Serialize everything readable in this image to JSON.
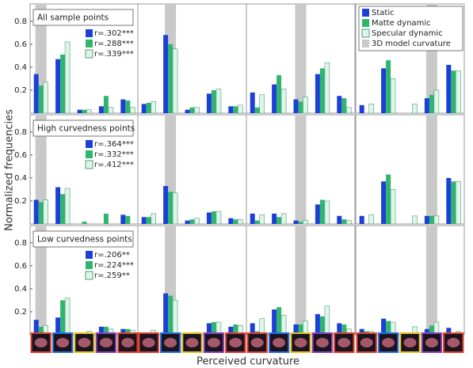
{
  "chart_data": {
    "type": "bar",
    "y_axis_label": "Normalized frequencies",
    "x_axis_label": "Perceived curvature",
    "ylim": [
      0,
      0.95
    ],
    "yticks": [
      0.2,
      0.4,
      0.6,
      0.8
    ],
    "categories": [
      null,
      null,
      null,
      null,
      null
    ],
    "category_border_colors": [
      "#e0402a",
      "#2a6de0",
      "#e8c21a",
      "#8a3fc0",
      "#e0402a"
    ],
    "series": [
      {
        "name": "Static",
        "color": "#1c3fd8"
      },
      {
        "name": "Matte dynamic",
        "color": "#2fb56e"
      },
      {
        "name": "Specular dynamic",
        "color": "#dcf6ea"
      }
    ],
    "model_curvature": {
      "name": "3D model curvature",
      "color": "#c9c9c9"
    },
    "rows": [
      {
        "title": "All sample points",
        "correlations": [
          "r=.302***",
          "r=.288***",
          "r=.339***"
        ],
        "panels": [
          {
            "model_curvature_category": 0,
            "values": [
              [
                0.34,
                0.47,
                0.03,
                0.06,
                0.12
              ],
              [
                0.24,
                0.51,
                0.03,
                0.15,
                0.11
              ],
              [
                0.27,
                0.62,
                0.03,
                0.05,
                0.05
              ]
            ]
          },
          {
            "model_curvature_category": 1,
            "values": [
              [
                0.08,
                0.68,
                0.03,
                0.17,
                0.06
              ],
              [
                0.09,
                0.6,
                0.05,
                0.2,
                0.06
              ],
              [
                0.1,
                0.56,
                0.05,
                0.21,
                0.07
              ]
            ]
          },
          {
            "model_curvature_category": 2,
            "values": [
              [
                0.18,
                0.25,
                0.12,
                0.34,
                0.15
              ],
              [
                0.05,
                0.33,
                0.1,
                0.39,
                0.13
              ],
              [
                0.16,
                0.21,
                0.14,
                0.44,
                0.05
              ]
            ]
          },
          {
            "model_curvature_category": 3,
            "values": [
              [
                0.07,
                0.39,
                0,
                0.13,
                0.42
              ],
              [
                0,
                0.46,
                0,
                0.16,
                0.37
              ],
              [
                0.08,
                0.3,
                0.08,
                0.2,
                0.37
              ]
            ]
          }
        ]
      },
      {
        "title": "High curvedness points",
        "correlations": [
          "r=.364***",
          "r=.332***",
          "r=.412***"
        ],
        "panels": [
          {
            "model_curvature_category": 0,
            "values": [
              [
                0.21,
                0.32,
                0,
                0,
                0.08
              ],
              [
                0.19,
                0.26,
                0.02,
                0.09,
                0.07
              ],
              [
                0.21,
                0.31,
                0,
                0,
                0
              ]
            ]
          },
          {
            "model_curvature_category": 1,
            "values": [
              [
                0.06,
                0.33,
                0.03,
                0.1,
                0.05
              ],
              [
                0.06,
                0.28,
                0.04,
                0.11,
                0.04
              ],
              [
                0.09,
                0.27,
                0.05,
                0.11,
                0.04
              ]
            ]
          },
          {
            "model_curvature_category": 2,
            "values": [
              [
                0.09,
                0.09,
                0.03,
                0.17,
                0.07
              ],
              [
                0.03,
                0.06,
                0.02,
                0.21,
                0.04
              ],
              [
                0.08,
                0.09,
                0.03,
                0.2,
                0.03
              ]
            ]
          },
          {
            "model_curvature_category": 3,
            "values": [
              [
                0.07,
                0.37,
                0,
                0.07,
                0.4
              ],
              [
                0,
                0.43,
                0,
                0.07,
                0.37
              ],
              [
                0.08,
                0.3,
                0.07,
                0.07,
                0.37
              ]
            ]
          }
        ]
      },
      {
        "title": "Low curvedness points",
        "correlations": [
          "r=.206**",
          "r=.224***",
          "r=.259**"
        ],
        "panels": [
          {
            "model_curvature_category": 0,
            "values": [
              [
                0.13,
                0.15,
                0.02,
                0.07,
                0.05
              ],
              [
                0.07,
                0.3,
                0.02,
                0.07,
                0.05
              ],
              [
                0.08,
                0.32,
                0.03,
                0.05,
                0.04
              ]
            ]
          },
          {
            "model_curvature_category": 1,
            "values": [
              [
                0.02,
                0.36,
                0.02,
                0.1,
                0.07
              ],
              [
                0.02,
                0.34,
                0.02,
                0.11,
                0.09
              ],
              [
                0.04,
                0.3,
                0.02,
                0.11,
                0.08
              ]
            ]
          },
          {
            "model_curvature_category": 2,
            "values": [
              [
                0.1,
                0.22,
                0.09,
                0.18,
                0.1
              ],
              [
                0.03,
                0.24,
                0.09,
                0.16,
                0.09
              ],
              [
                0.14,
                0.17,
                0.12,
                0.25,
                0.05
              ]
            ]
          },
          {
            "model_curvature_category": 3,
            "values": [
              [
                0.05,
                0.14,
                0,
                0.05,
                0.06
              ],
              [
                0.03,
                0.12,
                0,
                0.08,
                0.02
              ],
              [
                0.03,
                0.11,
                0.07,
                0.11,
                0.03
              ]
            ]
          }
        ]
      }
    ]
  }
}
